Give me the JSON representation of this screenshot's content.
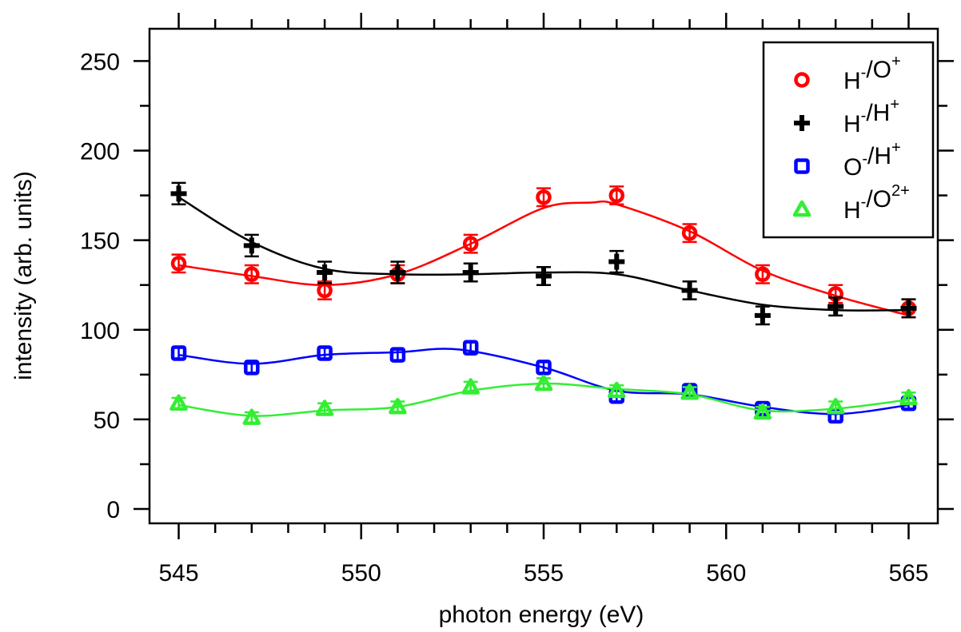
{
  "chart_data": {
    "type": "scatter",
    "xlabel": "photon energy (eV)",
    "ylabel": "intensity (arb. units)",
    "xlim": [
      544.2,
      565.8
    ],
    "ylim": [
      -8,
      268
    ],
    "xticks": [
      545,
      550,
      555,
      560,
      565
    ],
    "yticks": [
      0,
      50,
      100,
      150,
      200,
      250
    ],
    "grid": false,
    "legend_position": "top-right",
    "x": [
      545,
      547,
      549,
      551,
      553,
      555,
      557,
      559,
      561,
      563,
      565
    ],
    "series": [
      {
        "name": "H-/O+",
        "label_parts": [
          [
            "H",
            "-"
          ],
          [
            "/O",
            "+"
          ]
        ],
        "marker": "circle",
        "color": "#ff0000",
        "values": [
          137,
          131,
          122,
          131,
          148,
          174,
          175,
          154,
          131,
          120,
          112
        ],
        "errors": [
          5,
          5,
          5,
          5,
          5,
          5,
          5,
          5,
          5,
          5,
          5
        ],
        "fit": [
          [
            545,
            136
          ],
          [
            547,
            130
          ],
          [
            549,
            125
          ],
          [
            551,
            131
          ],
          [
            553,
            148
          ],
          [
            555,
            168
          ],
          [
            556.3,
            171
          ],
          [
            557,
            170
          ],
          [
            559,
            155
          ],
          [
            561,
            133
          ],
          [
            563,
            119
          ],
          [
            565,
            108
          ]
        ]
      },
      {
        "name": "H-/H+",
        "label_parts": [
          [
            "H",
            "-"
          ],
          [
            "/H",
            "+"
          ]
        ],
        "marker": "cross",
        "color": "#000000",
        "values": [
          176,
          147,
          132,
          132,
          132,
          130,
          138,
          122,
          108,
          113,
          112
        ],
        "errors": [
          6,
          6,
          6,
          6,
          5,
          5,
          6,
          5,
          5,
          5,
          5
        ],
        "fit": [
          [
            545,
            174
          ],
          [
            547,
            149
          ],
          [
            549,
            134
          ],
          [
            551,
            131
          ],
          [
            553,
            131
          ],
          [
            555,
            132
          ],
          [
            557,
            131
          ],
          [
            559,
            122
          ],
          [
            561,
            114
          ],
          [
            563,
            111
          ],
          [
            565,
            111
          ]
        ]
      },
      {
        "name": "O-/H+",
        "label_parts": [
          [
            "O",
            "-"
          ],
          [
            "/H",
            "+"
          ]
        ],
        "marker": "square",
        "color": "#0000ff",
        "values": [
          87,
          79,
          87,
          86,
          90,
          79,
          63,
          66,
          56,
          52,
          59
        ],
        "errors": [
          3,
          3,
          3,
          3,
          3,
          3,
          3,
          3,
          3,
          3,
          3
        ],
        "fit": [
          [
            545,
            86
          ],
          [
            547,
            81
          ],
          [
            549,
            86
          ],
          [
            551,
            87.5
          ],
          [
            552.7,
            89
          ],
          [
            555,
            79
          ],
          [
            557,
            66
          ],
          [
            559,
            64
          ],
          [
            561,
            57
          ],
          [
            563,
            53
          ],
          [
            565,
            58
          ]
        ]
      },
      {
        "name": "H-/O2+",
        "label_parts": [
          [
            "H",
            "-"
          ],
          [
            "/O",
            "2+"
          ]
        ],
        "marker": "triangle",
        "color": "#33ee33",
        "values": [
          59,
          51,
          56,
          57,
          68,
          70,
          66,
          65,
          54,
          57,
          62
        ],
        "errors": [
          3,
          3,
          3,
          3,
          3,
          3,
          3,
          3,
          3,
          3,
          3
        ],
        "fit": [
          [
            545,
            58
          ],
          [
            547,
            52
          ],
          [
            549,
            55
          ],
          [
            551,
            57
          ],
          [
            553,
            66
          ],
          [
            555,
            70
          ],
          [
            557,
            67
          ],
          [
            559,
            64
          ],
          [
            561,
            55
          ],
          [
            563,
            56
          ],
          [
            565,
            61
          ]
        ]
      }
    ]
  }
}
